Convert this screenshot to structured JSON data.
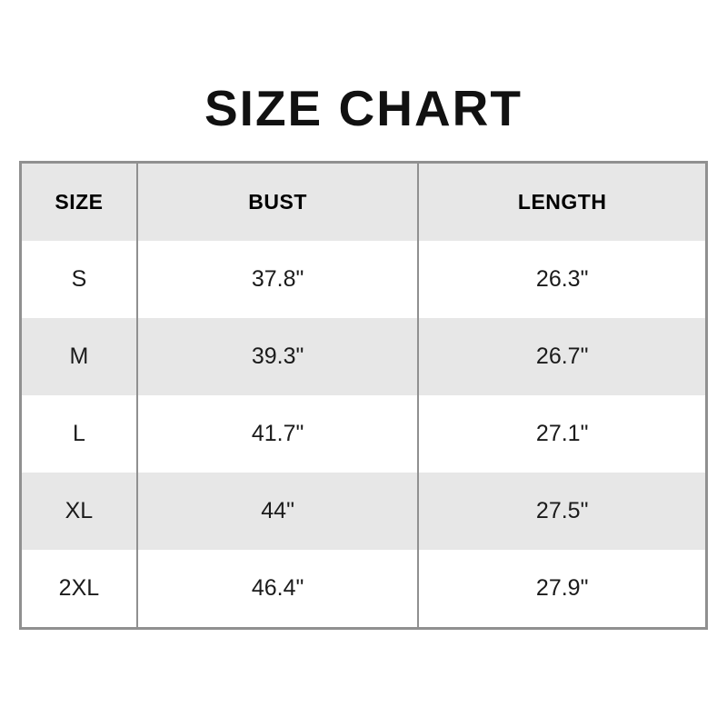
{
  "page": {
    "title": "SIZE CHART"
  },
  "colors": {
    "background": "#ffffff",
    "row_stripe": "#e7e7e7",
    "table_border": "#909090",
    "title_text": "#111111",
    "cell_text": "#1b1b1b"
  },
  "chart_data": {
    "type": "table",
    "title": "SIZE CHART",
    "columns": [
      "SIZE",
      "BUST",
      "LENGTH"
    ],
    "rows": [
      [
        "S",
        "37.8\"",
        "26.3\""
      ],
      [
        "M",
        "39.3\"",
        "26.7\""
      ],
      [
        "L",
        "41.7\"",
        "27.1\""
      ],
      [
        "XL",
        "44\"",
        "27.5\""
      ],
      [
        "2XL",
        "46.4\"",
        "27.9\""
      ]
    ],
    "layout": {
      "header_background": "#e7e7e7",
      "striped_rows": [
        2,
        4
      ],
      "grid": "outer-border-and-column-dividers-only"
    }
  }
}
